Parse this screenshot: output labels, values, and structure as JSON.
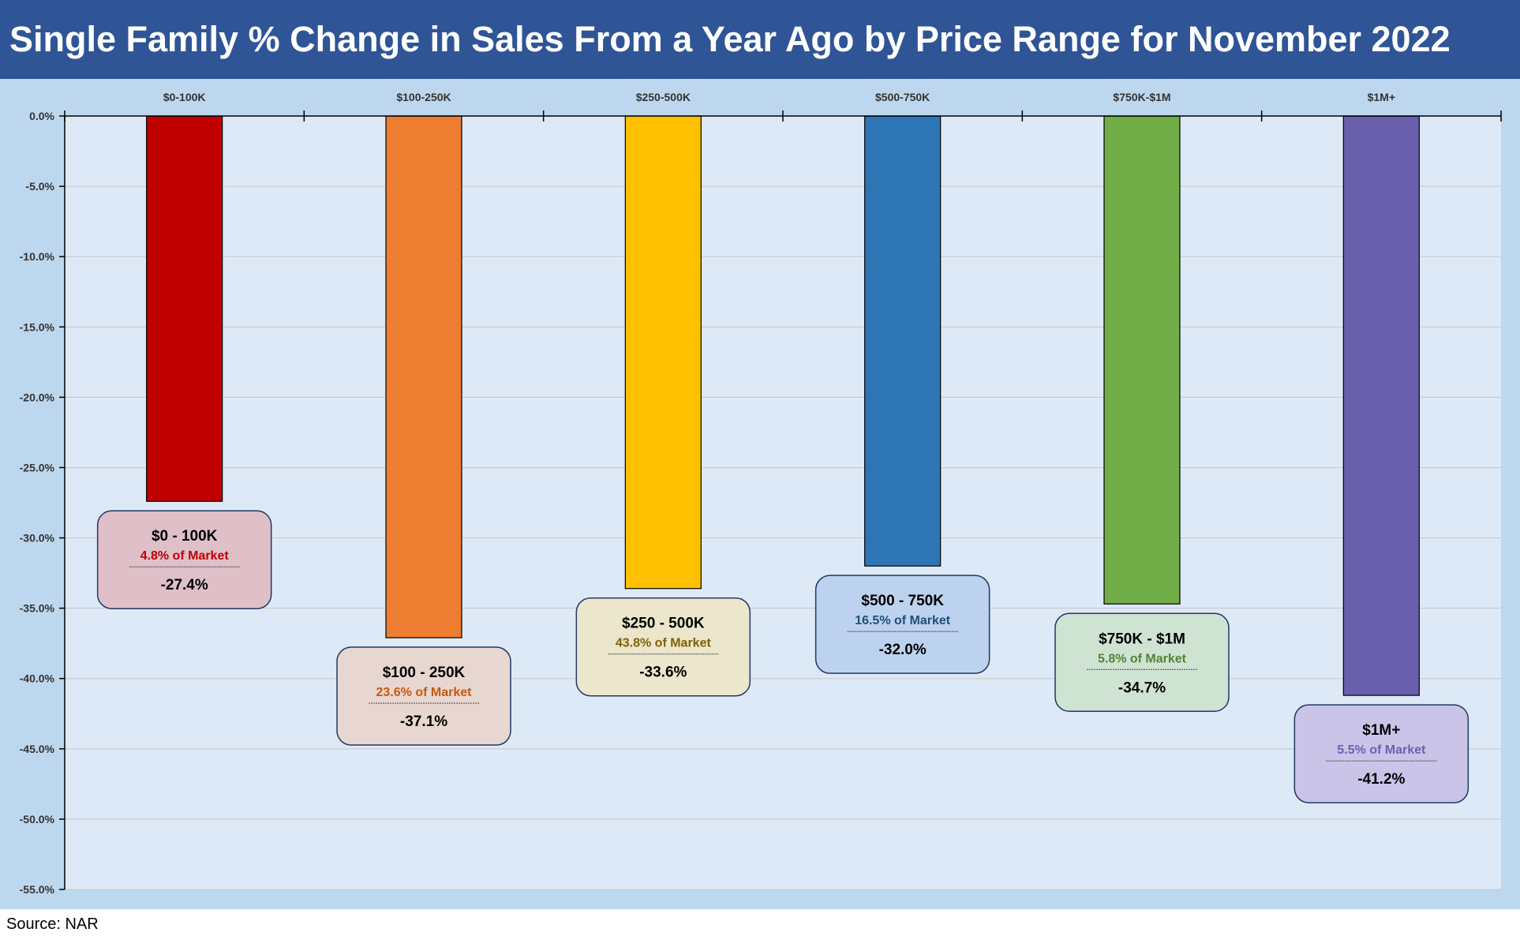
{
  "title": "Single Family % Change in Sales From a Year Ago by Price Range for November 2022",
  "source": "Source: NAR",
  "chart_data": {
    "type": "bar",
    "categories": [
      "$0-100K",
      "$100-250K",
      "$250-500K",
      "$500-750K",
      "$750K-$1M",
      "$1M+"
    ],
    "values": [
      -27.4,
      -37.1,
      -33.6,
      -32.0,
      -34.7,
      -41.2
    ],
    "ylim": [
      -55,
      0
    ],
    "y_ticks": [
      "0.0%",
      "-5.0%",
      "-10.0%",
      "-15.0%",
      "-20.0%",
      "-25.0%",
      "-30.0%",
      "-35.0%",
      "-40.0%",
      "-45.0%",
      "-50.0%",
      "-55.0%"
    ],
    "grid": true,
    "x_axis_position": "top",
    "colors": [
      "#c00000",
      "#ed7d31",
      "#ffc000",
      "#2e75b6",
      "#70ad47",
      "#6a5fad"
    ],
    "annotations": [
      {
        "label": "$0 - 100K",
        "share": "4.8% of Market",
        "value_label": "-27.4%",
        "fill": "#dfc0c8",
        "share_color": "#c00000"
      },
      {
        "label": "$100 - 250K",
        "share": "23.6% of Market",
        "value_label": "-37.1%",
        "fill": "#e8d6d0",
        "share_color": "#c55a11"
      },
      {
        "label": "$250 - 500K",
        "share": "43.8% of Market",
        "value_label": "-33.6%",
        "fill": "#ebe6cc",
        "share_color": "#806000"
      },
      {
        "label": "$500 - 750K",
        "share": "16.5% of Market",
        "value_label": "-32.0%",
        "fill": "#bdd2ee",
        "share_color": "#1f4e79"
      },
      {
        "label": "$750K - $1M",
        "share": "5.8% of Market",
        "value_label": "-34.7%",
        "fill": "#cfe3d3",
        "share_color": "#548235"
      },
      {
        "label": "$1M+",
        "share": "5.5% of Market",
        "value_label": "-41.2%",
        "fill": "#c9c4e8",
        "share_color": "#7060b0"
      }
    ]
  }
}
